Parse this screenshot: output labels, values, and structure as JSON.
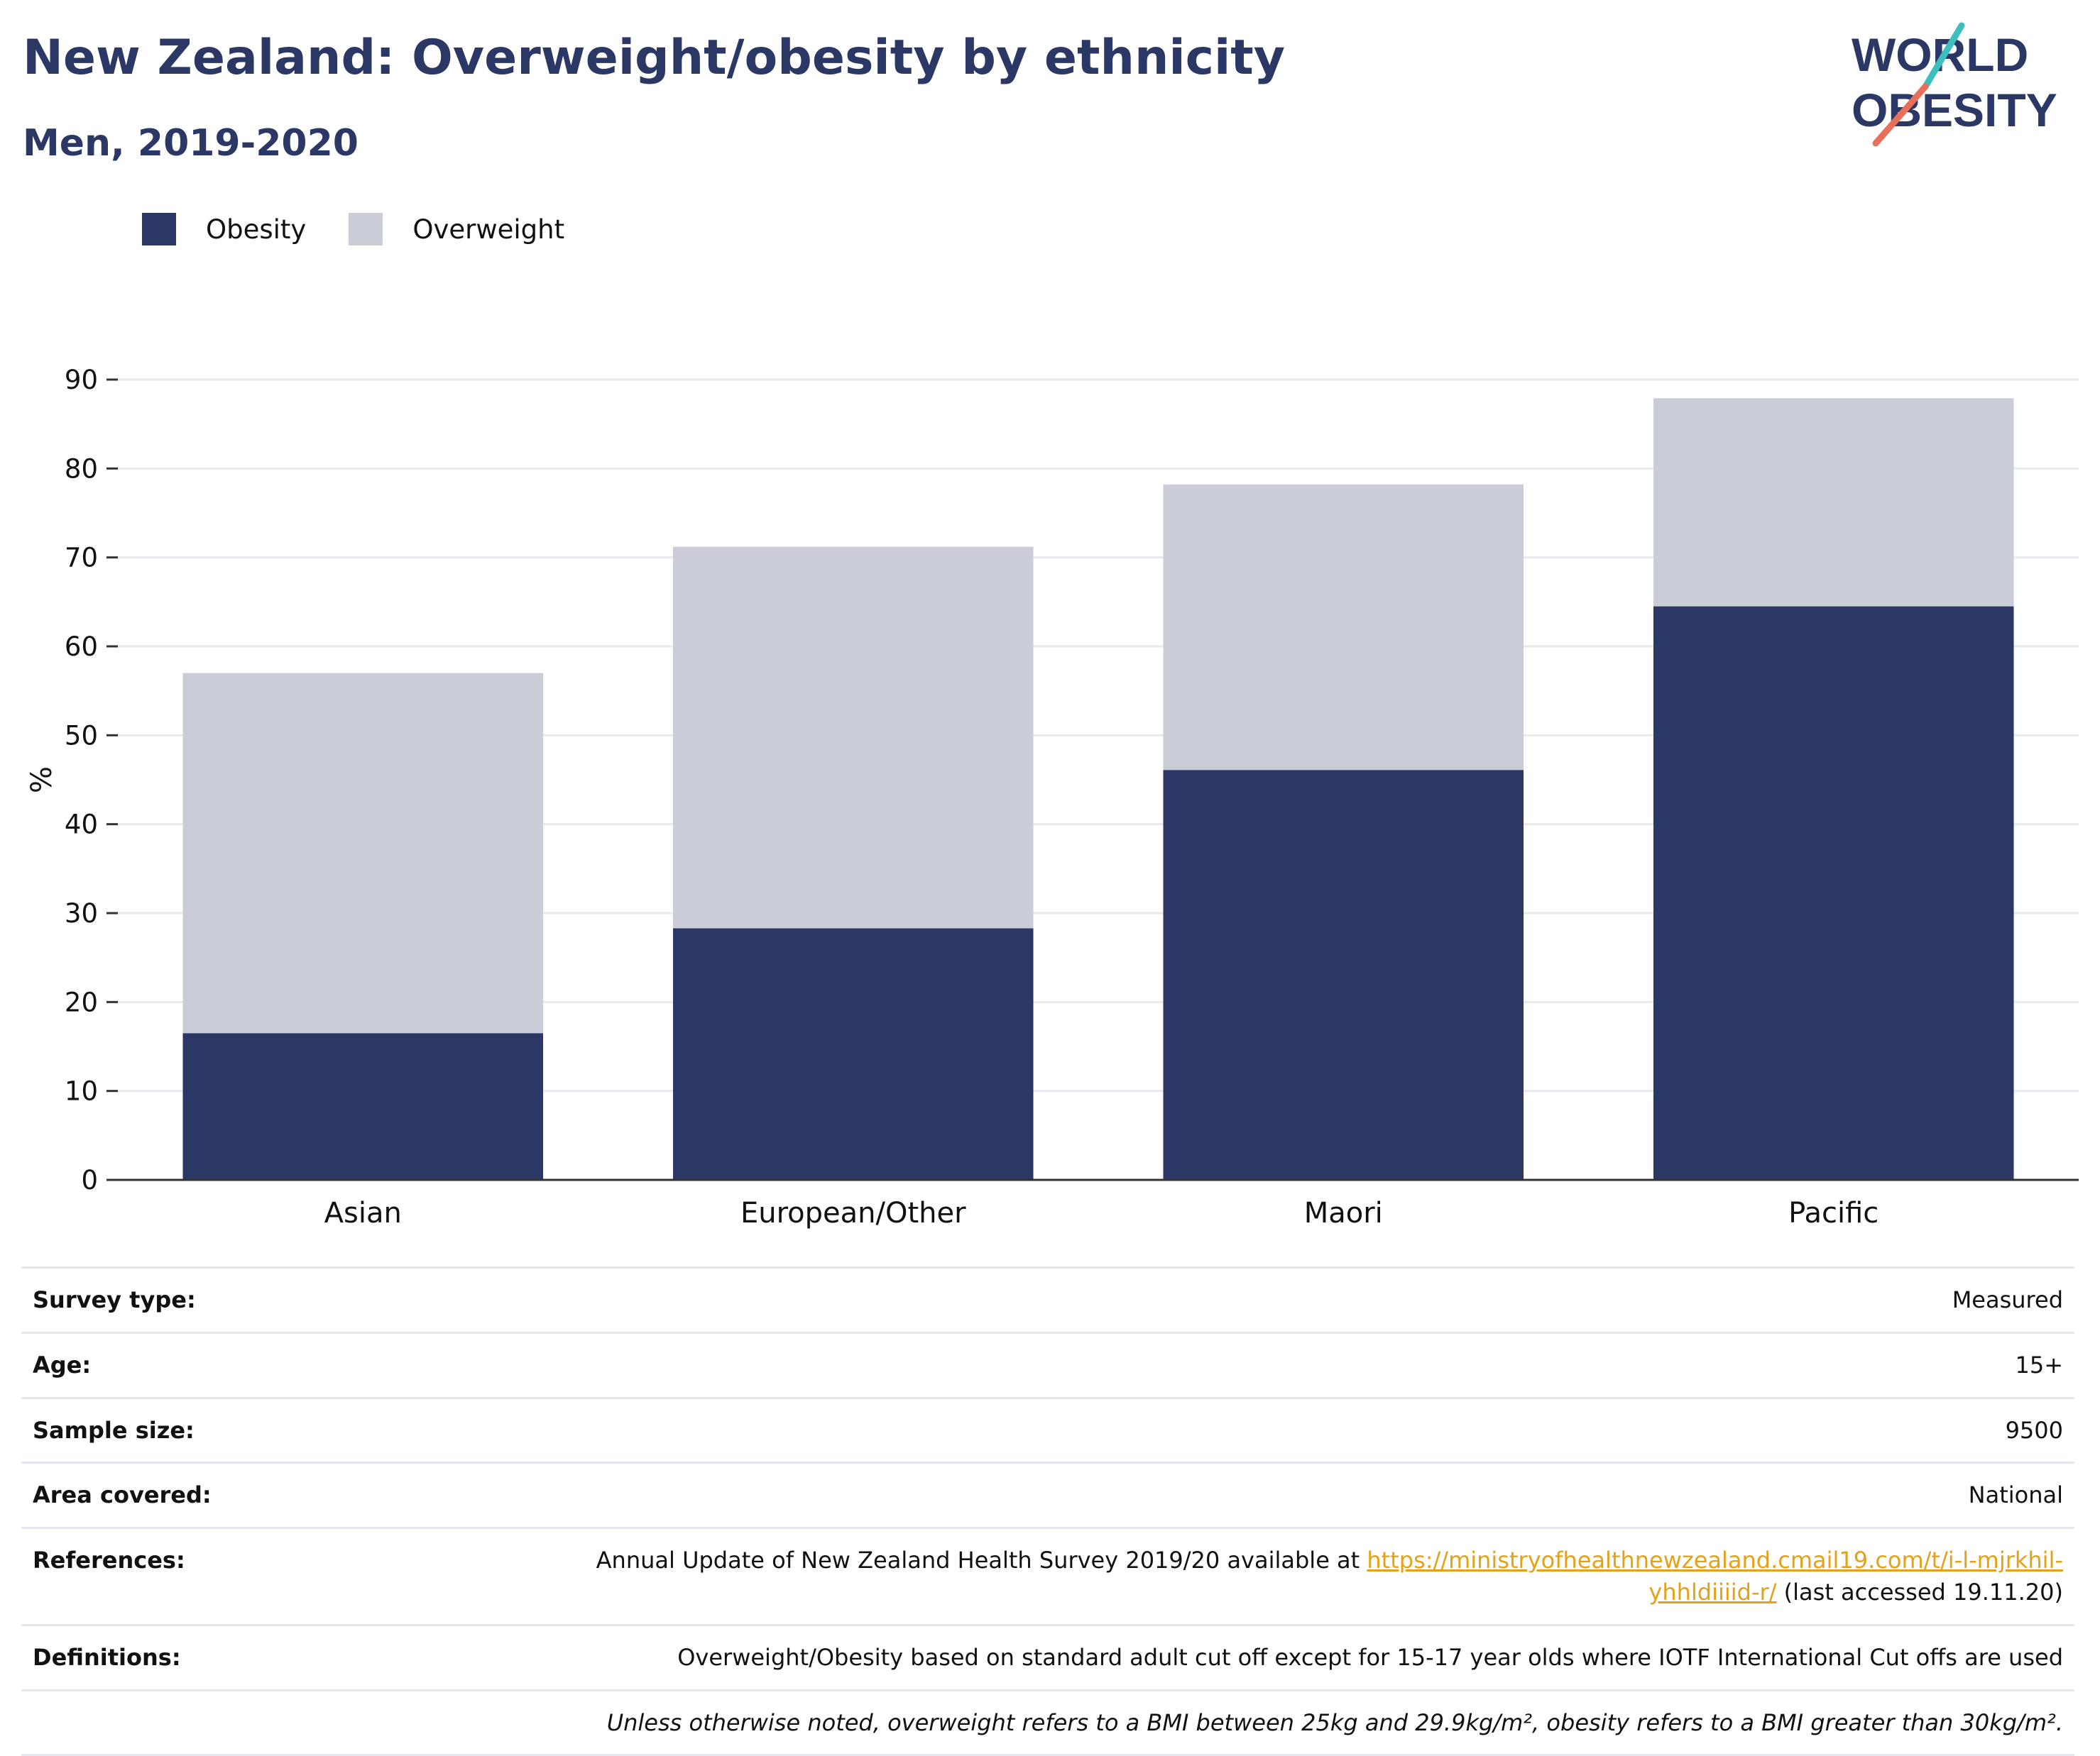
{
  "header": {
    "title": "New Zealand: Overweight/obesity by ethnicity",
    "subtitle": "Men, 2019-2020",
    "logo_line1": "WORLD",
    "logo_line2": "OBESITY"
  },
  "legend": {
    "items": [
      {
        "label": "Obesity",
        "color": "#2b3764"
      },
      {
        "label": "Overweight",
        "color": "#cacdd8"
      }
    ]
  },
  "chart_data": {
    "type": "bar",
    "stacked": true,
    "categories": [
      "Asian",
      "European/Other",
      "Maori",
      "Pacific"
    ],
    "series": [
      {
        "name": "Obesity",
        "color": "#2b3764",
        "values": [
          16.5,
          28.3,
          46.1,
          64.5
        ]
      },
      {
        "name": "Overweight",
        "color": "#cacdd8",
        "values": [
          40.5,
          42.9,
          32.1,
          23.4
        ]
      }
    ],
    "ylabel": "%",
    "ylim": [
      0,
      90
    ],
    "yticks": [
      "0",
      "10",
      "20",
      "30",
      "40",
      "50",
      "60",
      "70",
      "80",
      "90"
    ],
    "grid": true,
    "legend_position": "top-left"
  },
  "meta": {
    "survey_type": {
      "label": "Survey type:",
      "value": "Measured"
    },
    "age": {
      "label": "Age:",
      "value": "15+"
    },
    "sample_size": {
      "label": "Sample size:",
      "value": "9500"
    },
    "area_covered": {
      "label": "Area covered:",
      "value": "National"
    },
    "references": {
      "label": "References:",
      "text": "Annual Update of New Zealand Health Survey 2019/20 available at",
      "link_part1": "https://ministryofhealthnewzealand.cmail19.com/t/i-l-mjrkhil-",
      "link_part2": "yhhldiiiid-r/",
      "suffix": "(last accessed 19.11.20)"
    },
    "definitions": {
      "label": "Definitions:",
      "value": "Overweight/Obesity based on standard adult cut off except for 15-17 year olds where IOTF International Cut offs are used"
    },
    "footnote": "Unless otherwise noted, overweight refers to a BMI between 25kg and 29.9kg/m², obesity refers to a BMI greater than 30kg/m²."
  }
}
